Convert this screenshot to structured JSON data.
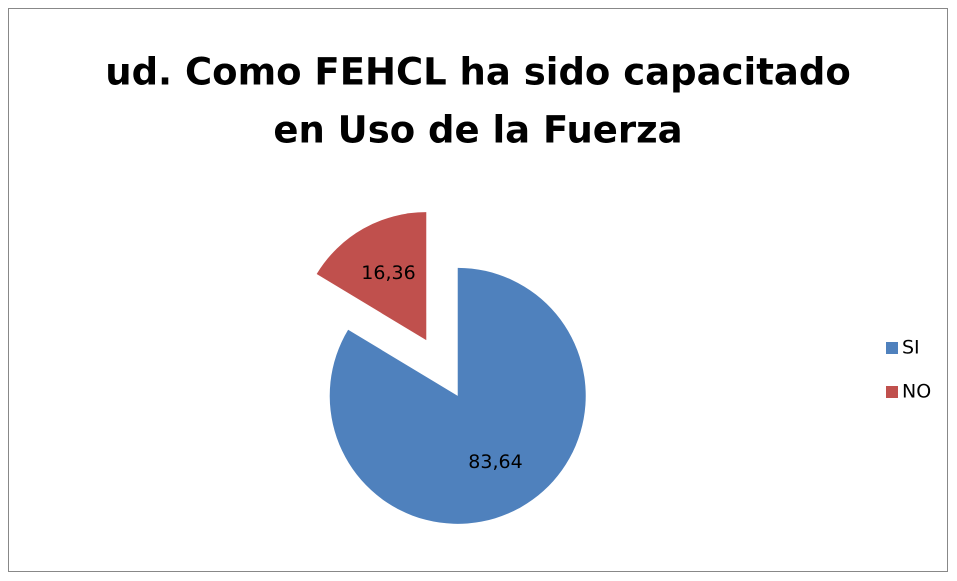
{
  "chart_data": {
    "type": "pie",
    "title": [
      "ud. Como FEHCL ha sido capacitado",
      "en Uso de la Fuerza"
    ],
    "categories": [
      "SI",
      "NO"
    ],
    "values": [
      83.64,
      16.36
    ],
    "value_labels": [
      "83,64",
      "16,36"
    ],
    "colors": [
      "#4f81bd",
      "#c0504d"
    ],
    "legend": "right"
  }
}
